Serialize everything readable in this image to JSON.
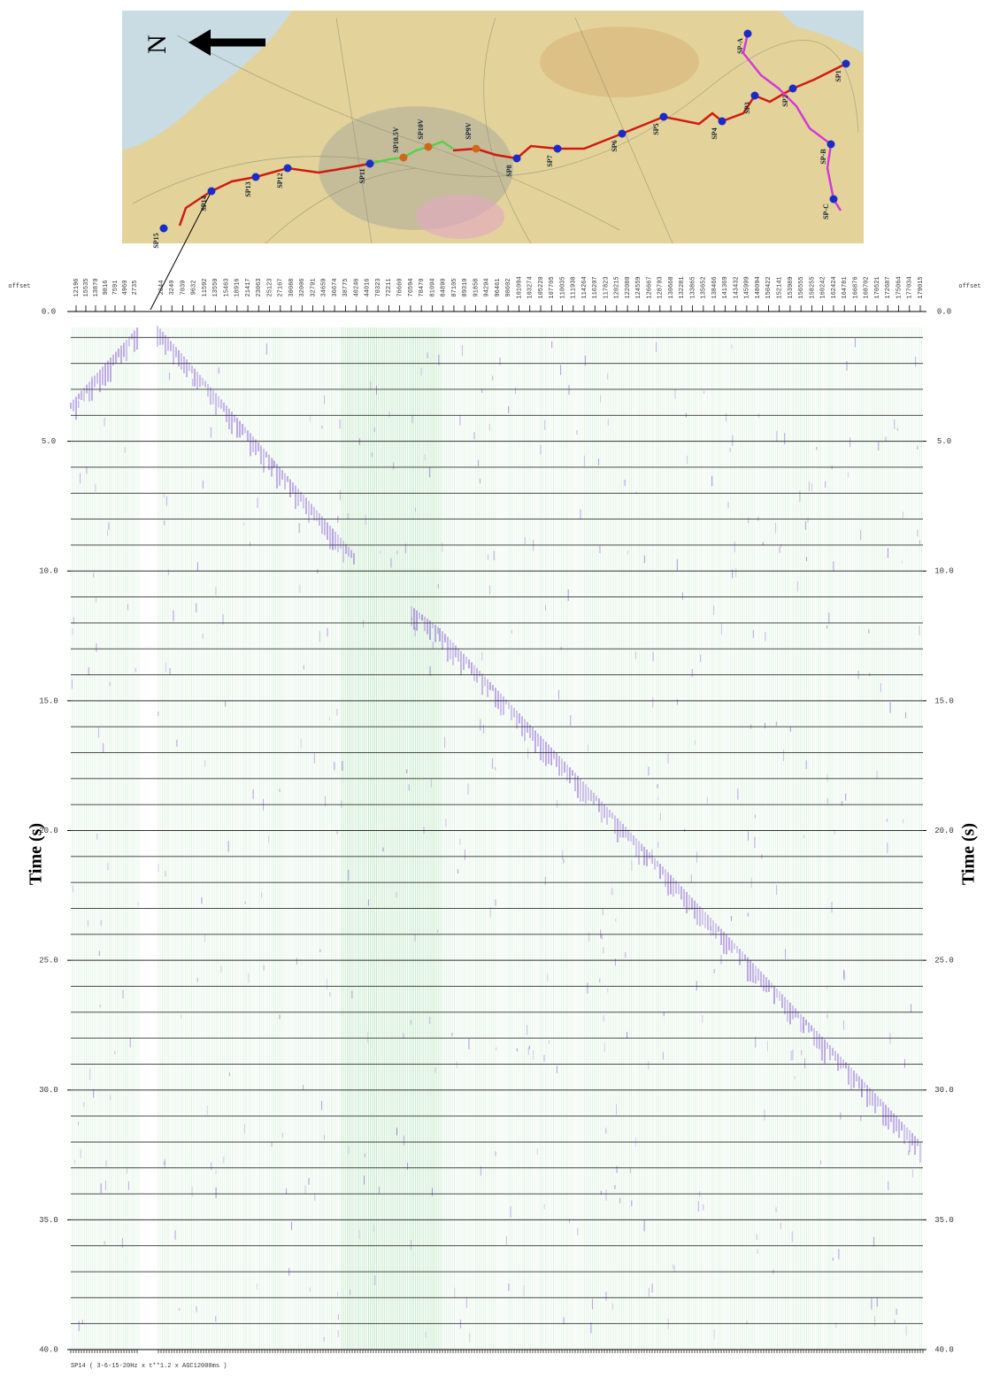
{
  "map": {
    "north": "N",
    "stations": [
      "SP1",
      "SP2",
      "SP3",
      "SP4",
      "SP5",
      "SP6",
      "SP7",
      "SP8",
      "SP9V",
      "SP10V",
      "SP10.5V",
      "SP11",
      "SP12",
      "SP13",
      "SP14",
      "SP15",
      "SP-A",
      "SP-B",
      "SP-C"
    ]
  },
  "chart_data": {
    "type": "seismic-section",
    "offset_label": "offset",
    "offsets_left": [
      "12196",
      "15535",
      "13870",
      "9816",
      "7591",
      "4960",
      "2735"
    ],
    "offsets_right": [
      "2044",
      "3240",
      "7039",
      "9632",
      "11592",
      "13550",
      "15463",
      "18916",
      "21417",
      "23063",
      "25123",
      "27167",
      "30088",
      "32006",
      "32791",
      "34659",
      "36674",
      "38775",
      "40246",
      "44016",
      "70323",
      "72211",
      "76660",
      "76594",
      "78470",
      "81094",
      "84890",
      "87105",
      "89310",
      "91858",
      "94294",
      "96461",
      "98602",
      "101004",
      "103274",
      "105220",
      "107705",
      "110035",
      "111938",
      "114264",
      "116207",
      "117823",
      "120215",
      "122080",
      "124559",
      "126667",
      "128793",
      "130668",
      "132281",
      "133865",
      "135652",
      "138466",
      "141369",
      "143432",
      "145999",
      "148094",
      "150422",
      "152141",
      "153989",
      "156555",
      "158255",
      "160242",
      "162424",
      "164781",
      "166876",
      "168702",
      "170521",
      "172687",
      "175064",
      "177034",
      "179015"
    ],
    "y_label": "Time (s)",
    "ylim": [
      0,
      40
    ],
    "yticks": [
      {
        "value": 0,
        "label": "0.0"
      },
      {
        "value": 5,
        "label": "5.0"
      },
      {
        "value": 10,
        "label": "10.0"
      },
      {
        "value": 15,
        "label": "15.0"
      },
      {
        "value": 20,
        "label": "20.0"
      },
      {
        "value": 25,
        "label": "25.0"
      },
      {
        "value": 30,
        "label": "30.0"
      },
      {
        "value": 35,
        "label": "35.0"
      },
      {
        "value": 40,
        "label": "40.0"
      }
    ],
    "grid_interval": 1,
    "grid": true,
    "footer": "SP14 ( 3-6-15-20Hz x t**1.2 x AGC12000ms )"
  }
}
